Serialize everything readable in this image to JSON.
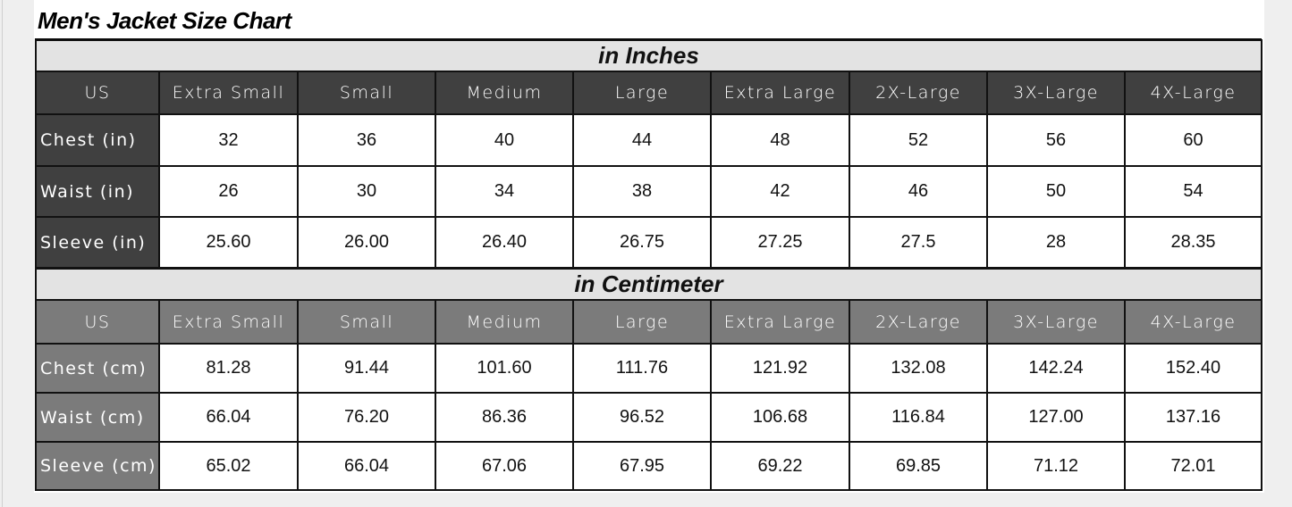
{
  "title": "Men's Jacket Size Chart",
  "colors": {
    "inches_header": "#404040",
    "cm_header": "#7b7b7b",
    "band": "#e3e3e3"
  },
  "inches": {
    "caption": "in Inches",
    "headers": [
      "US",
      "Extra Small",
      "Small",
      "Medium",
      "Large",
      "Extra Large",
      "2X-Large",
      "3X-Large",
      "4X-Large"
    ],
    "rows": [
      {
        "label": "Chest (in)",
        "values": [
          "32",
          "36",
          "40",
          "44",
          "48",
          "52",
          "56",
          "60"
        ]
      },
      {
        "label": "Waist (in)",
        "values": [
          "26",
          "30",
          "34",
          "38",
          "42",
          "46",
          "50",
          "54"
        ]
      },
      {
        "label": "Sleeve (in)",
        "values": [
          "25.60",
          "26.00",
          "26.40",
          "26.75",
          "27.25",
          "27.5",
          "28",
          "28.35"
        ]
      }
    ]
  },
  "cm": {
    "caption": "in Centimeter",
    "headers": [
      "US",
      "Extra Small",
      "Small",
      "Medium",
      "Large",
      "Extra Large",
      "2X-Large",
      "3X-Large",
      "4X-Large"
    ],
    "rows": [
      {
        "label": "Chest (cm)",
        "values": [
          "81.28",
          "91.44",
          "101.60",
          "111.76",
          "121.92",
          "132.08",
          "142.24",
          "152.40"
        ]
      },
      {
        "label": "Waist (cm)",
        "values": [
          "66.04",
          "76.20",
          "86.36",
          "96.52",
          "106.68",
          "116.84",
          "127.00",
          "137.16"
        ]
      },
      {
        "label": "Sleeve (cm)",
        "values": [
          "65.02",
          "66.04",
          "67.06",
          "67.95",
          "69.22",
          "69.85",
          "71.12",
          "72.01"
        ]
      }
    ]
  }
}
